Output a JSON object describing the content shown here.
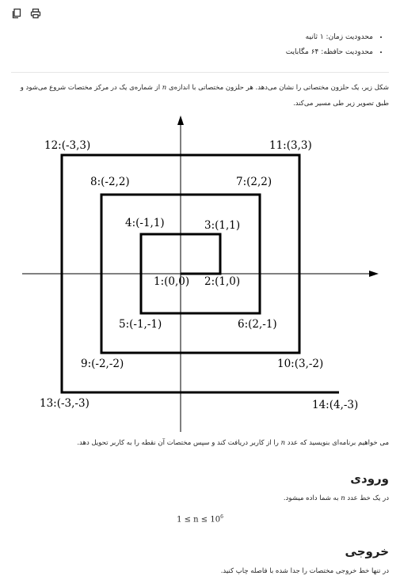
{
  "toolbar": {
    "copy_icon": "copy-icon",
    "print_icon": "printer-icon"
  },
  "limits": [
    "محدودیت زمان: ۱ ثانیه",
    "محدودیت حافظه: ۶۴ مگابایت"
  ],
  "statement": {
    "part1": "شکل زیر، یک حلزون مختصاتی را نشان می‌دهد. هر حلزون مختصاتی با اندازه‌ی",
    "var_n": "n",
    "part2": "از شماره‌ی یک در مرکز مختصات شروع می‌شود و طبق تصویر زیر طی مسیر می‌کند."
  },
  "diagram_labels": [
    "1:(0,0)",
    "2:(1,0)",
    "3:(1,1)",
    "4:(-1,1)",
    "5:(-1,-1)",
    "6:(2,-1)",
    "7:(2,2)",
    "8:(-2,2)",
    "9:(-2,-2)",
    "10:(3,-2)",
    "11:(3,3)",
    "12:(-3,3)",
    "13:(-3,-3)",
    "14:(4,-3)"
  ],
  "task": {
    "part1": "می خواهیم برنامه‌ای بنویسید که عدد",
    "var_n": "n",
    "part2": "را از کاربر دریافت کند و سپس مختصات آن نقطه را به کاربر تحویل دهد."
  },
  "input": {
    "heading": "ورودی",
    "text1": "در یک خط عدد",
    "var_n": "n",
    "text2": "به شما داده میشود.",
    "formula_main": "1 ≤ n ≤ 10",
    "formula_exp": "6"
  },
  "output": {
    "heading": "خروجی",
    "text": "در تنها خط خروجی مختصات را جدا شده با فاصله چاپ کنید."
  }
}
